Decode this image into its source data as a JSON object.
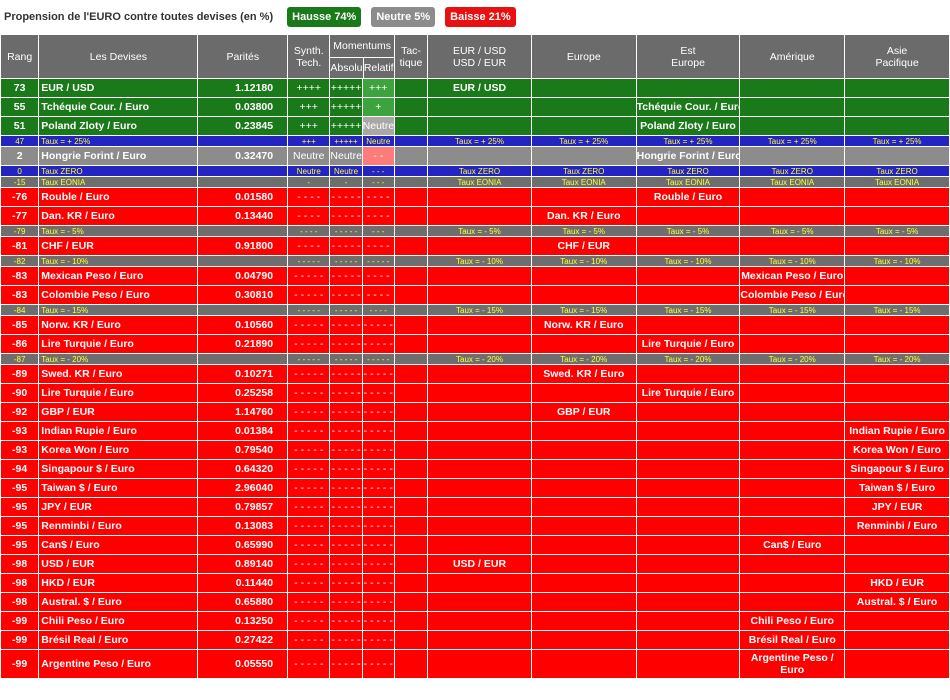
{
  "title": "Propension de l'EURO contre toutes devises (en %)",
  "badges": {
    "up": "Hausse 74%",
    "neutral": "Neutre 5%",
    "down": "Baisse 21%"
  },
  "colors": {
    "green": "#1a7a1a",
    "gray": "#8c8c8c",
    "red": "#ff0000",
    "blue": "#2424c0",
    "yellow": "#ffff33"
  },
  "headers": {
    "rang": "Rang",
    "devises": "Les Devises",
    "parites": "Parités",
    "synth1": "Synth.",
    "synth2": "Tech.",
    "momentums": "Momentums",
    "absolu": "Absolu",
    "relatif": "Relatif",
    "tac1": "Tac-",
    "tac2": "tique",
    "eurusd1": "EUR / USD",
    "eurusd2": "USD / EUR",
    "europe": "Europe",
    "est1": "Est",
    "est2": "Europe",
    "amerique": "Amérique",
    "asie1": "Asie",
    "asie2": "Pacifique"
  },
  "rows": [
    {
      "type": "g",
      "rang": "73",
      "name": "EUR / USD",
      "parite": "1.12180",
      "synth": "++++",
      "abs": "+++++",
      "rel": "+++",
      "relc": "relg",
      "cols": [
        "EUR / USD",
        "",
        "",
        "",
        ""
      ]
    },
    {
      "type": "g",
      "rang": "55",
      "name": "Tchéquie Cour. / Euro",
      "parite": "0.03800",
      "synth": "+++",
      "abs": "+++++",
      "rel": "+",
      "relc": "relg",
      "cols": [
        "",
        "",
        "Tchéquie Cour. / Euro",
        "",
        ""
      ]
    },
    {
      "type": "g",
      "rang": "51",
      "name": "Poland Zloty / Euro",
      "parite": "0.23845",
      "synth": "+++",
      "abs": "+++++",
      "rel": "Neutre",
      "relc": "relgr",
      "cols": [
        "",
        "",
        "Poland Zloty / Euro",
        "",
        ""
      ]
    },
    {
      "type": "bl",
      "rang": "47",
      "name": "Taux = + 25%",
      "synth": "+++",
      "abs": "+++++",
      "rel": "Neutre",
      "cols": [
        "Taux = + 25%",
        "Taux = + 25%",
        "Taux = + 25%",
        "Taux = + 25%",
        "Taux = + 25%"
      ]
    },
    {
      "type": "gr",
      "rang": "2",
      "name": "Hongrie Forint / Euro",
      "parite": "0.32470",
      "synth": "Neutre",
      "abs": "Neutre",
      "rel": "- -",
      "relc": "relp",
      "cols": [
        "",
        "",
        "Hongrie Forint / Euro",
        "",
        ""
      ]
    },
    {
      "type": "bl",
      "rang": "0",
      "name": "Taux ZERO",
      "synth": "Neutre",
      "abs": "Neutre",
      "rel": "- - -",
      "cols": [
        "Taux ZERO",
        "Taux ZERO",
        "Taux ZERO",
        "Taux ZERO",
        "Taux ZERO"
      ]
    },
    {
      "type": "tg",
      "rang": "-15",
      "name": "Taux EONIA",
      "synth": "-",
      "abs": "-",
      "rel": "- - -",
      "cols": [
        "Taux EONIA",
        "Taux EONIA",
        "Taux EONIA",
        "Taux EONIA",
        "Taux EONIA"
      ]
    },
    {
      "type": "r",
      "rang": "-76",
      "name": "Rouble / Euro",
      "parite": "0.01580",
      "synth": "- - - -",
      "abs": "- - - - -",
      "rel": "- - - -",
      "cols": [
        "",
        "",
        "Rouble / Euro",
        "",
        ""
      ]
    },
    {
      "type": "r",
      "rang": "-77",
      "name": "Dan. KR / Euro",
      "parite": "0.13440",
      "synth": "- - - -",
      "abs": "- - - - -",
      "rel": "- - - -",
      "cols": [
        "",
        "Dan. KR / Euro",
        "",
        "",
        ""
      ]
    },
    {
      "type": "tg",
      "rang": "-79",
      "name": "Taux = - 5%",
      "synth": "- - - -",
      "abs": "- - - - -",
      "rel": "- - -",
      "cols": [
        "Taux = - 5%",
        "Taux = - 5%",
        "Taux = - 5%",
        "Taux = - 5%",
        "Taux = - 5%"
      ]
    },
    {
      "type": "r",
      "rang": "-81",
      "name": "CHF / EUR",
      "parite": "0.91800",
      "synth": "- - - -",
      "abs": "- - - - -",
      "rel": "- - - -",
      "cols": [
        "",
        "CHF / EUR",
        "",
        "",
        ""
      ]
    },
    {
      "type": "tg",
      "rang": "-82",
      "name": "Taux = - 10%",
      "synth": "- - - - -",
      "abs": "- - - - -",
      "rel": "- - - - -",
      "cols": [
        "Taux = - 10%",
        "Taux = - 10%",
        "Taux = - 10%",
        "Taux = - 10%",
        "Taux = - 10%"
      ]
    },
    {
      "type": "r",
      "rang": "-83",
      "name": "Mexican Peso / Euro",
      "parite": "0.04790",
      "synth": "- - - - -",
      "abs": "- - - - -",
      "rel": "- - - -",
      "cols": [
        "",
        "",
        "",
        "Mexican Peso / Euro",
        ""
      ]
    },
    {
      "type": "r",
      "rang": "-83",
      "name": "Colombie Peso / Euro",
      "parite": "0.30810",
      "synth": "- - - - -",
      "abs": "- - - - -",
      "rel": "- - - -",
      "cols": [
        "",
        "",
        "",
        "Colombie Peso / Euro",
        ""
      ]
    },
    {
      "type": "tg",
      "rang": "-84",
      "name": "Taux = - 15%",
      "synth": "- - - - -",
      "abs": "- - - - -",
      "rel": "- - - -",
      "cols": [
        "Taux = - 15%",
        "Taux = - 15%",
        "Taux = - 15%",
        "Taux = - 15%",
        "Taux = - 15%"
      ]
    },
    {
      "type": "r",
      "rang": "-85",
      "name": "Norw. KR / Euro",
      "parite": "0.10560",
      "synth": "- - - - -",
      "abs": "- - - - -",
      "rel": "- - - - -",
      "cols": [
        "",
        "Norw. KR / Euro",
        "",
        "",
        ""
      ]
    },
    {
      "type": "r",
      "rang": "-86",
      "name": "Lire Turquie / Euro",
      "parite": "0.21890",
      "synth": "- - - - -",
      "abs": "- - - - -",
      "rel": "- - - - -",
      "cols": [
        "",
        "",
        "Lire Turquie / Euro",
        "",
        ""
      ]
    },
    {
      "type": "tg",
      "rang": "-87",
      "name": "Taux = - 20%",
      "synth": "- - - - -",
      "abs": "- - - - -",
      "rel": "- - - - -",
      "cols": [
        "Taux = - 20%",
        "Taux = - 20%",
        "Taux = - 20%",
        "Taux = - 20%",
        "Taux = - 20%"
      ]
    },
    {
      "type": "r",
      "rang": "-89",
      "name": "Swed. KR / Euro",
      "parite": "0.10271",
      "synth": "- - - - -",
      "abs": "- - - - -",
      "rel": "- - - - -",
      "cols": [
        "",
        "Swed. KR / Euro",
        "",
        "",
        ""
      ]
    },
    {
      "type": "r",
      "rang": "-90",
      "name": "Lire Turquie / Euro",
      "parite": "0.25258",
      "synth": "- - - - -",
      "abs": "- - - - -",
      "rel": "- - - - -",
      "cols": [
        "",
        "",
        "Lire Turquie / Euro",
        "",
        ""
      ]
    },
    {
      "type": "r",
      "rang": "-92",
      "name": "GBP / EUR",
      "parite": "1.14760",
      "synth": "- - - - -",
      "abs": "- - - - -",
      "rel": "- - - - -",
      "cols": [
        "",
        "GBP / EUR",
        "",
        "",
        ""
      ]
    },
    {
      "type": "r",
      "rang": "-93",
      "name": "Indian Rupie / Euro",
      "parite": "0.01384",
      "synth": "- - - - -",
      "abs": "- - - - -",
      "rel": "- - - - -",
      "cols": [
        "",
        "",
        "",
        "",
        "Indian Rupie / Euro"
      ]
    },
    {
      "type": "r",
      "rang": "-93",
      "name": "Korea Won / Euro",
      "parite": "0.79540",
      "synth": "- - - - -",
      "abs": "- - - - -",
      "rel": "- - - - -",
      "cols": [
        "",
        "",
        "",
        "",
        "Korea Won / Euro"
      ]
    },
    {
      "type": "r",
      "rang": "-94",
      "name": "Singapour $ / Euro",
      "parite": "0.64320",
      "synth": "- - - - -",
      "abs": "- - - - -",
      "rel": "- - - - -",
      "cols": [
        "",
        "",
        "",
        "",
        "Singapour $ / Euro"
      ]
    },
    {
      "type": "r",
      "rang": "-95",
      "name": "Taiwan $ / Euro",
      "parite": "2.96040",
      "synth": "- - - - -",
      "abs": "- - - - -",
      "rel": "- - - - -",
      "cols": [
        "",
        "",
        "",
        "",
        "Taiwan $ / Euro"
      ]
    },
    {
      "type": "r",
      "rang": "-95",
      "name": "JPY / EUR",
      "parite": "0.79857",
      "synth": "- - - - -",
      "abs": "- - - - -",
      "rel": "- - - - -",
      "cols": [
        "",
        "",
        "",
        "",
        "JPY / EUR"
      ]
    },
    {
      "type": "r",
      "rang": "-95",
      "name": "Renminbi / Euro",
      "parite": "0.13083",
      "synth": "- - - - -",
      "abs": "- - - - -",
      "rel": "- - - - -",
      "cols": [
        "",
        "",
        "",
        "",
        "Renminbi / Euro"
      ]
    },
    {
      "type": "r",
      "rang": "-95",
      "name": "Can$ / Euro",
      "parite": "0.65990",
      "synth": "- - - - -",
      "abs": "- - - - -",
      "rel": "- - - - -",
      "cols": [
        "",
        "",
        "",
        "Can$ / Euro",
        ""
      ]
    },
    {
      "type": "r",
      "rang": "-98",
      "name": "USD / EUR",
      "parite": "0.89140",
      "synth": "- - - - -",
      "abs": "- - - - -",
      "rel": "- - - - -",
      "cols": [
        "USD / EUR",
        "",
        "",
        "",
        ""
      ]
    },
    {
      "type": "r",
      "rang": "-98",
      "name": "HKD / EUR",
      "parite": "0.11440",
      "synth": "- - - - -",
      "abs": "- - - - -",
      "rel": "- - - - -",
      "cols": [
        "",
        "",
        "",
        "",
        "HKD / EUR"
      ]
    },
    {
      "type": "r",
      "rang": "-98",
      "name": "Austral. $ / Euro",
      "parite": "0.65880",
      "synth": "- - - - -",
      "abs": "- - - - -",
      "rel": "- - - - -",
      "cols": [
        "",
        "",
        "",
        "",
        "Austral. $ / Euro"
      ]
    },
    {
      "type": "r",
      "rang": "-99",
      "name": "Chili Peso / Euro",
      "parite": "0.13250",
      "synth": "- - - - -",
      "abs": "- - - - -",
      "rel": "- - - - -",
      "cols": [
        "",
        "",
        "",
        "Chili Peso / Euro",
        ""
      ]
    },
    {
      "type": "r",
      "rang": "-99",
      "name": "Brésil Real / Euro",
      "parite": "0.27422",
      "synth": "- - - - -",
      "abs": "- - - - -",
      "rel": "- - - - -",
      "cols": [
        "",
        "",
        "",
        "Brésil Real / Euro",
        ""
      ]
    },
    {
      "type": "r",
      "rang": "-99",
      "name": "Argentine Peso / Euro",
      "parite": "0.05550",
      "synth": "- - - - -",
      "abs": "- - - - -",
      "rel": "- - - - -",
      "cols": [
        "",
        "",
        "",
        "Argentine Peso / Euro",
        ""
      ],
      "tall": true
    }
  ]
}
